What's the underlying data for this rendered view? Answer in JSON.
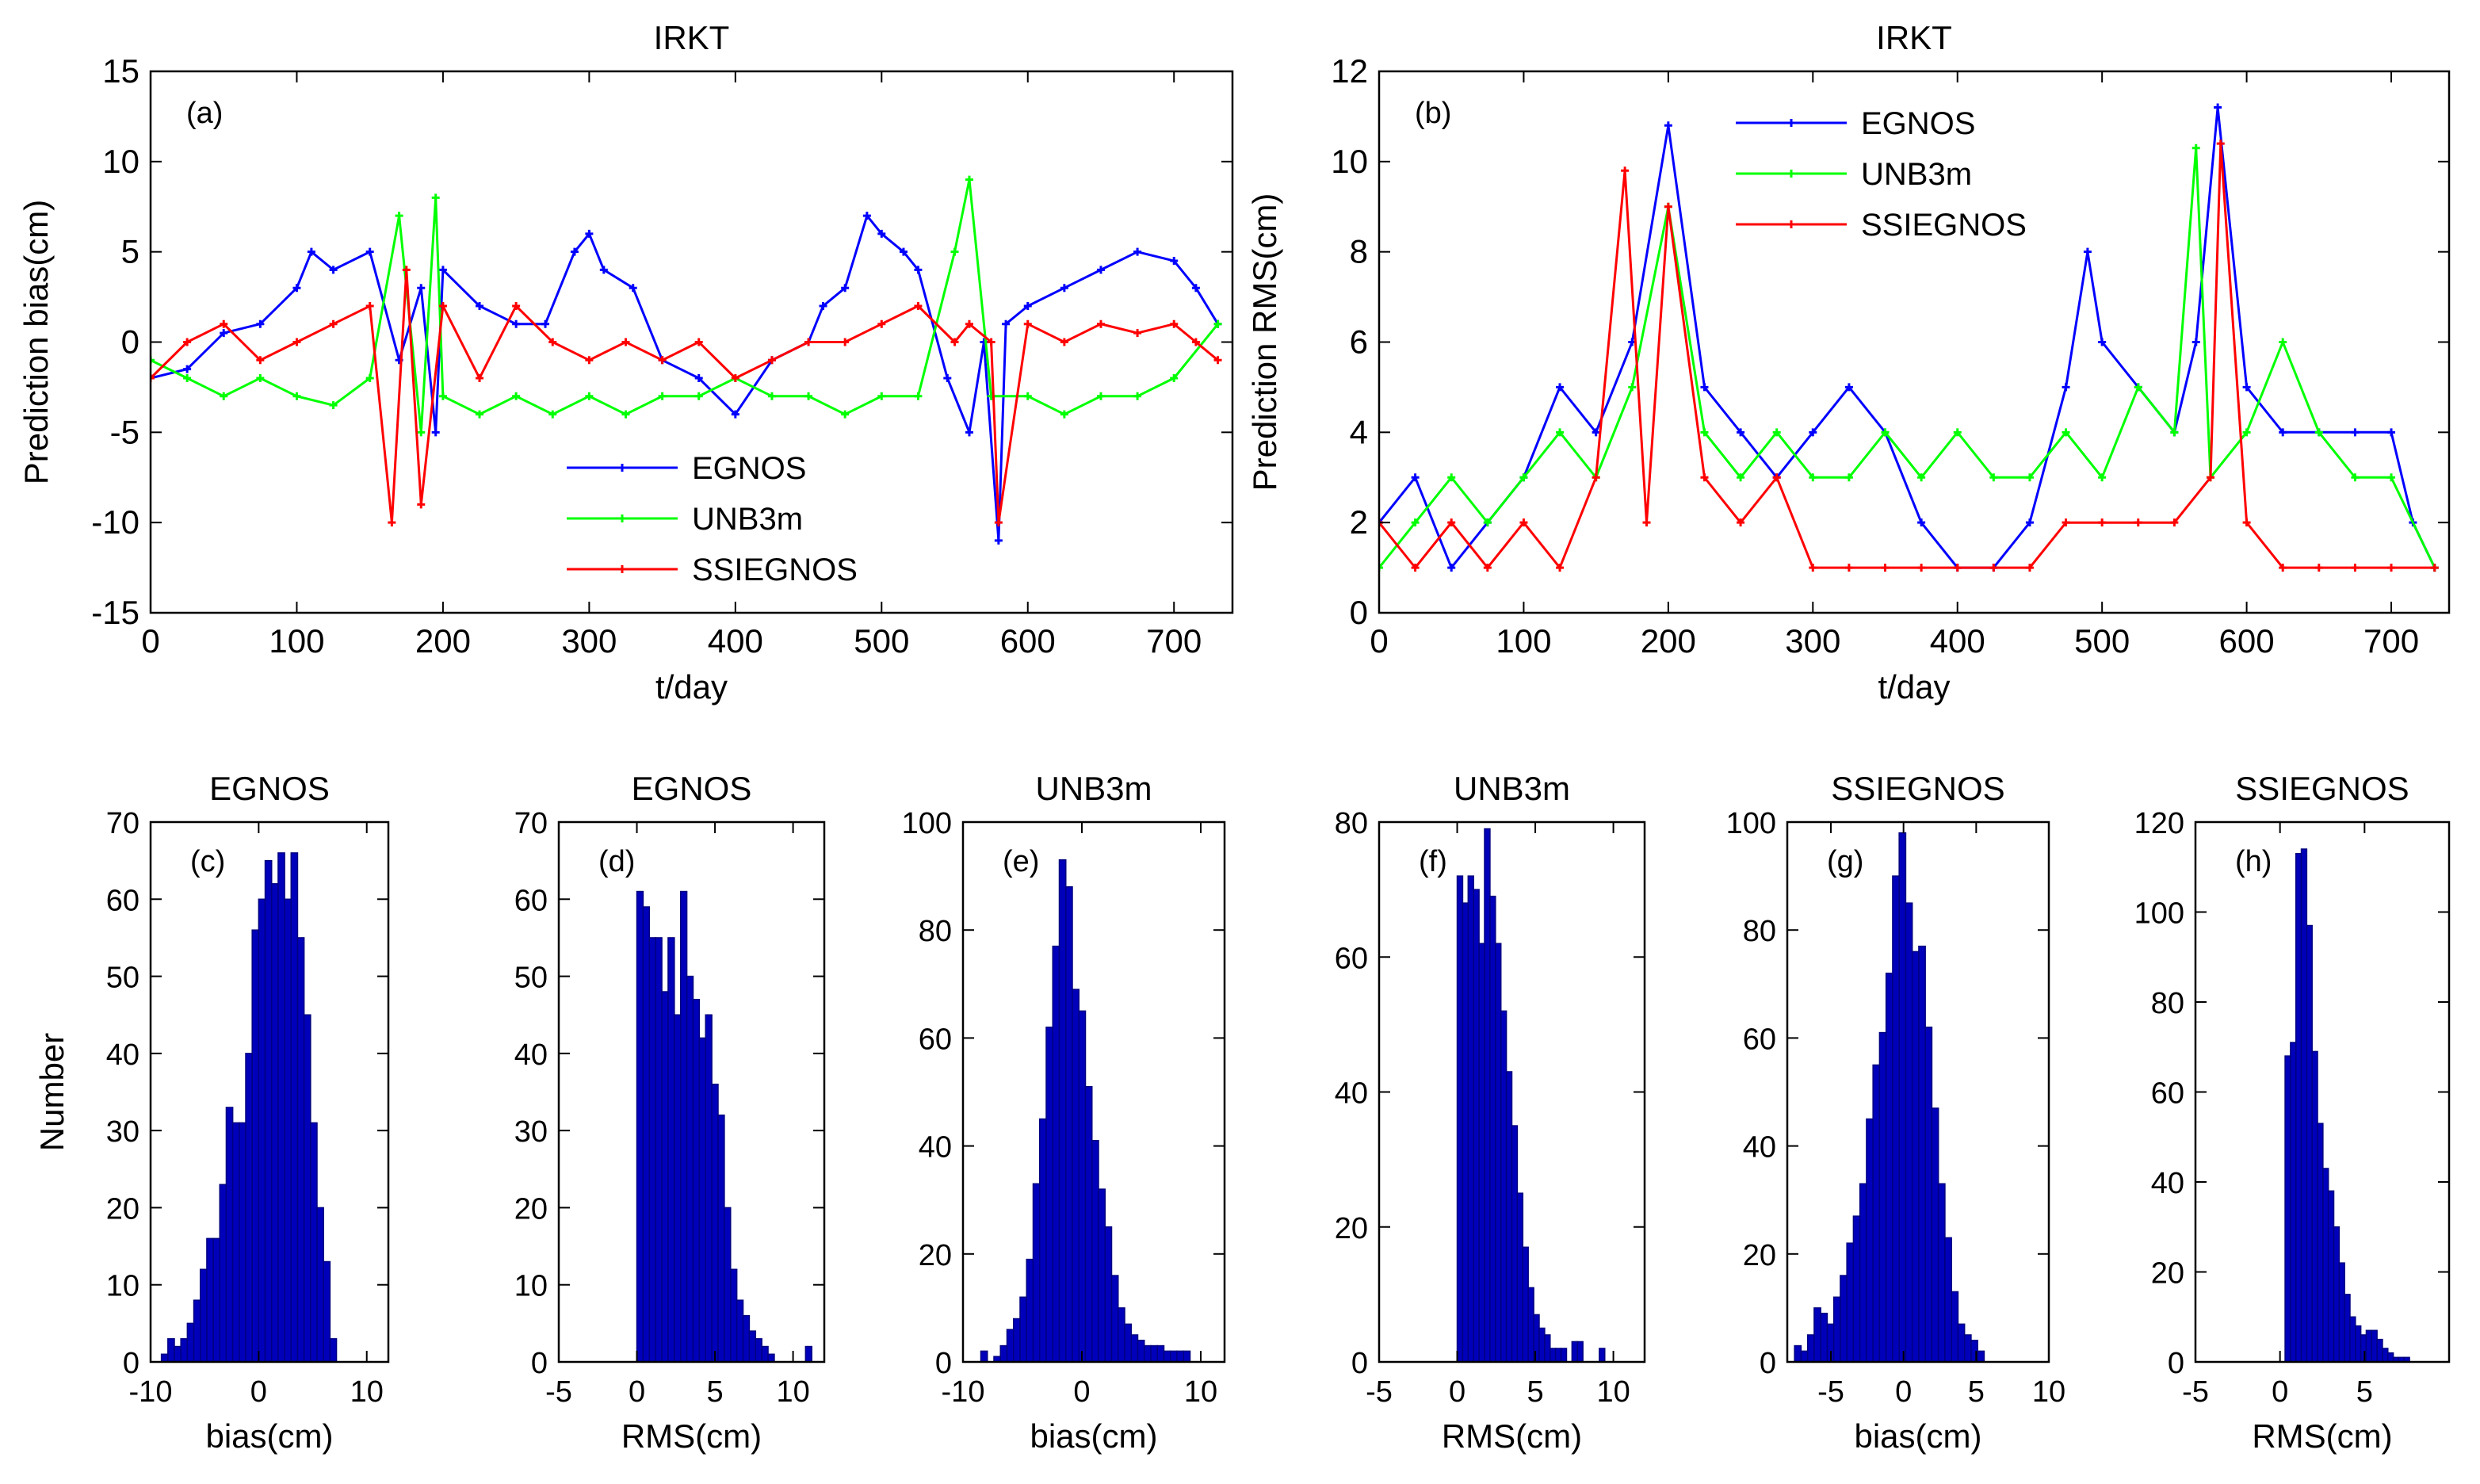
{
  "colors": {
    "egnos": "#0000ff",
    "unb3m": "#00ff00",
    "ssiegnos": "#ff0000",
    "bars": "#0000bb",
    "barEdge": "#000080"
  },
  "chart_data": [
    {
      "id": "a",
      "type": "line",
      "title": "IRKT",
      "panel_label": "(a)",
      "xlabel": "t/day",
      "ylabel": "Prediction bias(cm)",
      "xlim": [
        0,
        740
      ],
      "ylim": [
        -15,
        15
      ],
      "xticks": [
        0,
        100,
        200,
        300,
        400,
        500,
        600,
        700
      ],
      "yticks": [
        -15,
        -10,
        -5,
        0,
        5,
        10,
        15
      ],
      "legend": [
        "EGNOS",
        "UNB3m",
        "SSIEGNOS"
      ],
      "legend_position": "lower-center",
      "series": [
        {
          "name": "EGNOS",
          "x": [
            0,
            25,
            50,
            75,
            100,
            110,
            125,
            150,
            170,
            185,
            195,
            200,
            225,
            250,
            270,
            290,
            300,
            310,
            330,
            350,
            375,
            400,
            425,
            450,
            460,
            475,
            490,
            500,
            515,
            525,
            545,
            560,
            570,
            580,
            585,
            600,
            625,
            650,
            675,
            700,
            715,
            730
          ],
          "y": [
            -2,
            -1.5,
            0.5,
            1,
            3,
            5,
            4,
            5,
            -1,
            3,
            -5,
            4,
            2,
            1,
            1,
            5,
            6,
            4,
            3,
            -1,
            -2,
            -4,
            -1,
            0,
            2,
            3,
            7,
            6,
            5,
            4,
            -2,
            -5,
            0,
            -11,
            1,
            2,
            3,
            4,
            5,
            4.5,
            3,
            1
          ]
        },
        {
          "name": "UNB3m",
          "x": [
            0,
            25,
            50,
            75,
            100,
            125,
            150,
            170,
            185,
            195,
            200,
            225,
            250,
            275,
            300,
            325,
            350,
            375,
            400,
            425,
            450,
            475,
            500,
            525,
            550,
            560,
            575,
            600,
            625,
            650,
            675,
            700,
            730
          ],
          "y": [
            -1,
            -2,
            -3,
            -2,
            -3,
            -3.5,
            -2,
            7,
            -5,
            8,
            -3,
            -4,
            -3,
            -4,
            -3,
            -4,
            -3,
            -3,
            -2,
            -3,
            -3,
            -4,
            -3,
            -3,
            5,
            9,
            -3,
            -3,
            -4,
            -3,
            -3,
            -2,
            1
          ]
        },
        {
          "name": "SSIEGNOS",
          "x": [
            0,
            25,
            50,
            75,
            100,
            125,
            150,
            165,
            175,
            185,
            200,
            225,
            250,
            275,
            300,
            325,
            350,
            375,
            400,
            425,
            450,
            475,
            500,
            525,
            550,
            560,
            575,
            580,
            600,
            625,
            650,
            675,
            700,
            715,
            730
          ],
          "y": [
            -2,
            0,
            1,
            -1,
            0,
            1,
            2,
            -10,
            4,
            -9,
            2,
            -2,
            2,
            0,
            -1,
            0,
            -1,
            0,
            -2,
            -1,
            0,
            0,
            1,
            2,
            0,
            1,
            0,
            -10,
            1,
            0,
            1,
            0.5,
            1,
            0,
            -1
          ]
        }
      ]
    },
    {
      "id": "b",
      "type": "line",
      "title": "IRKT",
      "panel_label": "(b)",
      "xlabel": "t/day",
      "ylabel": "Prediction RMS(cm)",
      "xlim": [
        0,
        740
      ],
      "ylim": [
        0,
        12
      ],
      "xticks": [
        0,
        100,
        200,
        300,
        400,
        500,
        600,
        700
      ],
      "yticks": [
        0,
        2,
        4,
        6,
        8,
        10,
        12
      ],
      "legend": [
        "EGNOS",
        "UNB3m",
        "SSIEGNOS"
      ],
      "legend_position": "top-center",
      "series": [
        {
          "name": "EGNOS",
          "x": [
            0,
            25,
            50,
            75,
            100,
            125,
            150,
            175,
            200,
            225,
            250,
            275,
            300,
            325,
            350,
            375,
            400,
            425,
            450,
            475,
            490,
            500,
            525,
            550,
            565,
            580,
            600,
            625,
            650,
            675,
            700,
            715,
            730
          ],
          "y": [
            2,
            3,
            1,
            2,
            3,
            5,
            4,
            6,
            10.8,
            5,
            4,
            3,
            4,
            5,
            4,
            2,
            1,
            1,
            2,
            5,
            8,
            6,
            5,
            4,
            6,
            11.2,
            5,
            4,
            4,
            4,
            4,
            2,
            1
          ]
        },
        {
          "name": "UNB3m",
          "x": [
            0,
            25,
            50,
            75,
            100,
            125,
            150,
            175,
            200,
            225,
            250,
            275,
            300,
            325,
            350,
            375,
            400,
            425,
            450,
            475,
            500,
            525,
            550,
            565,
            575,
            600,
            625,
            650,
            675,
            700,
            730
          ],
          "y": [
            1,
            2,
            3,
            2,
            3,
            4,
            3,
            5,
            9,
            4,
            3,
            4,
            3,
            3,
            4,
            3,
            4,
            3,
            3,
            4,
            3,
            5,
            4,
            10.3,
            3,
            4,
            6,
            4,
            3,
            3,
            1
          ]
        },
        {
          "name": "SSIEGNOS",
          "x": [
            0,
            25,
            50,
            75,
            100,
            125,
            150,
            170,
            185,
            200,
            225,
            250,
            275,
            300,
            325,
            350,
            375,
            400,
            425,
            450,
            475,
            500,
            525,
            550,
            575,
            582,
            600,
            625,
            650,
            675,
            700,
            730
          ],
          "y": [
            2,
            1,
            2,
            1,
            2,
            1,
            3,
            9.8,
            2,
            9,
            3,
            2,
            3,
            1,
            1,
            1,
            1,
            1,
            1,
            1,
            2,
            2,
            2,
            2,
            3,
            10.4,
            2,
            1,
            1,
            1,
            1,
            1
          ]
        }
      ]
    },
    {
      "id": "c",
      "type": "bar",
      "title": "EGNOS",
      "panel_label": "(c)",
      "xlabel": "bias(cm)",
      "ylabel": "Number",
      "xlim": [
        -10,
        12
      ],
      "ylim": [
        0,
        70
      ],
      "xticks": [
        -10,
        0,
        10
      ],
      "yticks": [
        0,
        10,
        20,
        30,
        40,
        50,
        60,
        70
      ],
      "bin_left": -9,
      "bin_width": 0.6,
      "values": [
        1,
        3,
        2,
        3,
        5,
        8,
        12,
        16,
        16,
        23,
        33,
        31,
        31,
        40,
        56,
        60,
        65,
        62,
        66,
        60,
        66,
        55,
        45,
        31,
        20,
        13,
        3
      ]
    },
    {
      "id": "d",
      "type": "bar",
      "title": "EGNOS",
      "panel_label": "(d)",
      "xlabel": "RMS(cm)",
      "ylabel": "",
      "xlim": [
        -5,
        12
      ],
      "ylim": [
        0,
        70
      ],
      "xticks": [
        -5,
        0,
        5,
        10
      ],
      "yticks": [
        0,
        10,
        20,
        30,
        40,
        50,
        60,
        70
      ],
      "bin_left": 0,
      "bin_width": 0.4,
      "values": [
        61,
        59,
        55,
        55,
        48,
        55,
        45,
        61,
        50,
        47,
        42,
        45,
        36,
        32,
        20,
        12,
        8,
        6,
        4,
        3,
        2,
        1,
        0,
        0,
        0,
        0,
        0,
        2
      ]
    },
    {
      "id": "e",
      "type": "bar",
      "title": "UNB3m",
      "panel_label": "(e)",
      "xlabel": "bias(cm)",
      "ylabel": "",
      "xlim": [
        -10,
        12
      ],
      "ylim": [
        0,
        100
      ],
      "xticks": [
        -10,
        0,
        10
      ],
      "yticks": [
        0,
        20,
        40,
        60,
        80,
        100
      ],
      "bin_left": -8.5,
      "bin_width": 0.55,
      "values": [
        2,
        0,
        1,
        3,
        6,
        8,
        12,
        19,
        33,
        45,
        62,
        77,
        93,
        88,
        69,
        65,
        51,
        41,
        32,
        25,
        16,
        10,
        7,
        5,
        4,
        3,
        3,
        3,
        2,
        2,
        2,
        2
      ]
    },
    {
      "id": "f",
      "type": "bar",
      "title": "UNB3m",
      "panel_label": "(f)",
      "xlabel": "RMS(cm)",
      "ylabel": "",
      "xlim": [
        -5,
        12
      ],
      "ylim": [
        0,
        80
      ],
      "xticks": [
        -5,
        0,
        5,
        10
      ],
      "yticks": [
        0,
        20,
        40,
        60,
        80
      ],
      "bin_left": 0,
      "bin_width": 0.35,
      "values": [
        72,
        68,
        72,
        70,
        62,
        79,
        69,
        62,
        52,
        43,
        35,
        25,
        17,
        11,
        7,
        5,
        4,
        2,
        2,
        2,
        0,
        3,
        3,
        0,
        0,
        0,
        2
      ]
    },
    {
      "id": "g",
      "type": "bar",
      "title": "SSIEGNOS",
      "panel_label": "(g)",
      "xlabel": "bias(cm)",
      "ylabel": "",
      "xlim": [
        -8,
        10
      ],
      "ylim": [
        0,
        100
      ],
      "xticks": [
        -5,
        0,
        5,
        10
      ],
      "yticks": [
        0,
        20,
        40,
        60,
        80,
        100
      ],
      "bin_left": -7.5,
      "bin_width": 0.45,
      "values": [
        3,
        2,
        5,
        10,
        9,
        7,
        12,
        16,
        22,
        27,
        33,
        45,
        55,
        61,
        72,
        90,
        98,
        85,
        76,
        77,
        62,
        47,
        33,
        23,
        13,
        7,
        5,
        4,
        2
      ]
    },
    {
      "id": "h",
      "type": "bar",
      "title": "SSIEGNOS",
      "panel_label": "(h)",
      "xlabel": "RMS(cm)",
      "ylabel": "",
      "xlim": [
        -5,
        10
      ],
      "ylim": [
        0,
        120
      ],
      "xticks": [
        -5,
        0,
        5
      ],
      "yticks": [
        0,
        20,
        40,
        60,
        80,
        100,
        120
      ],
      "bin_left": 0.3,
      "bin_width": 0.32,
      "values": [
        68,
        71,
        113,
        114,
        97,
        69,
        53,
        43,
        38,
        30,
        22,
        15,
        10,
        8,
        6,
        7,
        7,
        5,
        3,
        2,
        1,
        1,
        1,
        0,
        0,
        0,
        0,
        0
      ]
    }
  ]
}
